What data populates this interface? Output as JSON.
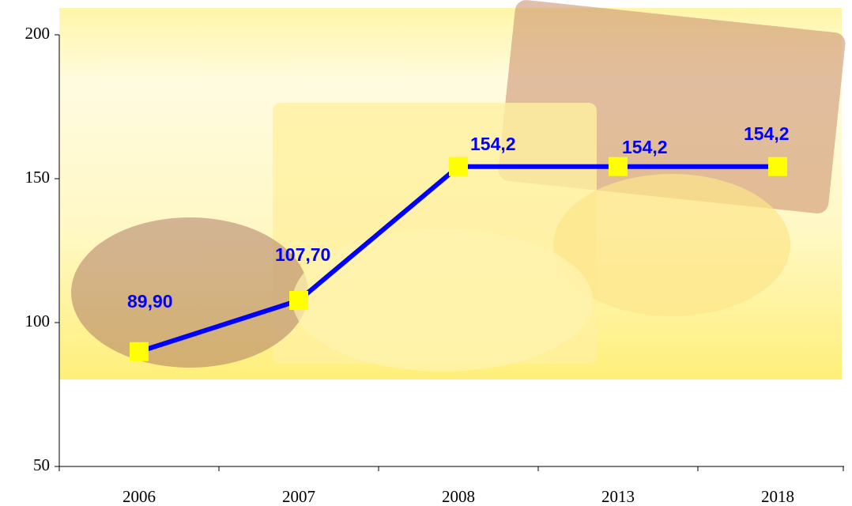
{
  "chart_data": {
    "type": "line",
    "categories": [
      "2006",
      "2007",
      "2008",
      "2013",
      "2018"
    ],
    "values": [
      89.9,
      107.7,
      154.2,
      154.2,
      154.2
    ],
    "value_labels": [
      "89,90",
      "107,70",
      "154,2",
      "154,2",
      "154,2"
    ],
    "color": "#0000ff",
    "marker_color": "#ffff00",
    "ylim": [
      50,
      200
    ],
    "yticks": [
      50,
      100,
      150,
      200
    ]
  }
}
